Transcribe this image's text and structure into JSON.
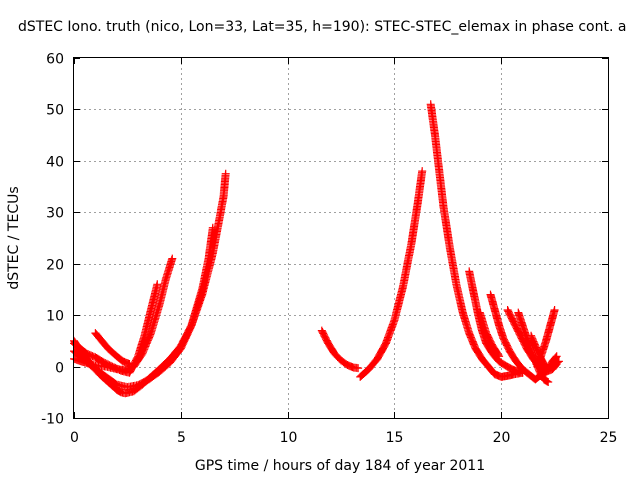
{
  "chart_data": {
    "type": "scatter",
    "title": "dSTEC Iono. truth (nico, Lon=33, Lat=35, h=190): STEC-STEC_elemax in phase cont. a",
    "xlabel": "GPS time / hours of day 184 of year 2011",
    "ylabel": "dSTEC  / TECUs",
    "xlim": [
      0,
      25
    ],
    "ylim": [
      -10,
      60
    ],
    "xticks": [
      0,
      5,
      10,
      15,
      20,
      25
    ],
    "yticks": [
      -10,
      0,
      10,
      20,
      30,
      40,
      50,
      60
    ],
    "grid": true,
    "marker": "plus",
    "color": "#ff0000",
    "series": [
      {
        "x": [
          0.0,
          0.4,
          0.8,
          1.2,
          1.6,
          2.0,
          2.2,
          2.4,
          2.8,
          3.2,
          3.6,
          4.0,
          4.5,
          5.0,
          5.5,
          6.0,
          6.5,
          7.0,
          7.1
        ],
        "y": [
          5.0,
          2.5,
          0.5,
          -1.5,
          -3.0,
          -4.5,
          -5.0,
          -5.2,
          -4.8,
          -3.5,
          -2.0,
          -0.5,
          1.5,
          4.0,
          8.0,
          14.0,
          22.0,
          33.0,
          37.5
        ]
      },
      {
        "x": [
          0.0,
          0.5,
          1.0,
          1.5,
          2.0,
          2.5,
          3.0,
          3.5,
          4.0,
          4.5,
          5.0,
          5.5,
          6.0,
          6.3,
          6.5
        ],
        "y": [
          3.0,
          1.2,
          -0.5,
          -2.0,
          -3.5,
          -4.0,
          -3.6,
          -2.5,
          -1.0,
          0.8,
          3.5,
          8.0,
          15.0,
          21.0,
          27.0
        ]
      },
      {
        "x": [
          0.0,
          0.5,
          1.0,
          1.5,
          2.0,
          2.4,
          2.8,
          3.2,
          3.6,
          4.0,
          4.3,
          4.6
        ],
        "y": [
          1.5,
          0.8,
          0.2,
          0.0,
          -0.5,
          -0.7,
          0.0,
          2.5,
          6.5,
          12.0,
          17.0,
          21.0
        ]
      },
      {
        "x": [
          0.0,
          0.3,
          0.6,
          1.0,
          1.4,
          1.8,
          2.2,
          2.6,
          3.0,
          3.3,
          3.6,
          3.9
        ],
        "y": [
          4.5,
          3.5,
          2.5,
          1.8,
          0.8,
          0.0,
          -0.8,
          -1.2,
          2.0,
          6.0,
          11.0,
          16.0
        ]
      },
      {
        "x": [
          1.0,
          1.3,
          1.6,
          2.0,
          2.3,
          2.6
        ],
        "y": [
          6.5,
          5.0,
          3.5,
          2.0,
          1.0,
          0.5
        ]
      },
      {
        "x": [
          11.6,
          11.9,
          12.2,
          12.5,
          12.8,
          13.1,
          13.3
        ],
        "y": [
          7.0,
          4.5,
          2.5,
          1.2,
          0.3,
          -0.2,
          -0.3
        ]
      },
      {
        "x": [
          13.4,
          13.8,
          14.2,
          14.6,
          15.0,
          15.4,
          15.8,
          16.1,
          16.3
        ],
        "y": [
          -2.0,
          -0.5,
          1.5,
          4.5,
          9.0,
          15.5,
          24.0,
          32.0,
          38.0
        ]
      },
      {
        "x": [
          16.7,
          16.9,
          17.1,
          17.3,
          17.6,
          17.9,
          18.2,
          18.5,
          18.8,
          19.1,
          19.4,
          19.7,
          20.0,
          20.3,
          20.6,
          21.0
        ],
        "y": [
          51.0,
          45.0,
          38.0,
          31.0,
          23.0,
          16.0,
          10.5,
          6.5,
          3.5,
          1.5,
          0.0,
          -1.5,
          -2.0,
          -1.8,
          -1.5,
          -1.2
        ]
      },
      {
        "x": [
          18.5,
          18.7,
          18.9,
          19.1,
          19.3,
          19.6,
          19.9,
          20.2,
          20.5,
          20.8,
          21.0
        ],
        "y": [
          18.5,
          14.5,
          10.5,
          7.0,
          4.5,
          2.5,
          1.0,
          0.2,
          -0.5,
          -1.0,
          -1.2
        ]
      },
      {
        "x": [
          19.5,
          19.7,
          19.9,
          20.1,
          20.4,
          20.7,
          21.0,
          21.3,
          21.6,
          21.9,
          22.2,
          22.5,
          22.7
        ],
        "y": [
          14.0,
          11.0,
          8.0,
          5.5,
          3.0,
          1.0,
          -0.5,
          -1.5,
          -2.5,
          -1.5,
          -0.5,
          0.5,
          1.0
        ]
      },
      {
        "x": [
          20.3,
          20.6,
          20.9,
          21.2,
          21.5,
          21.8,
          22.1,
          22.4,
          22.6
        ],
        "y": [
          11.0,
          8.5,
          6.0,
          3.5,
          1.5,
          0.0,
          -1.0,
          -0.5,
          0.5
        ]
      },
      {
        "x": [
          20.8,
          21.0,
          21.2,
          21.4,
          21.6,
          21.8,
          22.0,
          22.2
        ],
        "y": [
          10.5,
          8.0,
          5.5,
          3.0,
          1.0,
          -1.0,
          -2.5,
          -3.0
        ]
      },
      {
        "x": [
          21.7,
          21.9,
          22.1,
          22.3,
          22.5
        ],
        "y": [
          0.0,
          2.5,
          5.0,
          8.0,
          11.0
        ]
      },
      {
        "x": [
          21.4,
          21.6,
          21.8,
          22.0,
          22.2,
          22.4,
          22.6
        ],
        "y": [
          6.0,
          4.0,
          2.0,
          0.5,
          -0.5,
          1.0,
          2.0
        ]
      },
      {
        "x": [
          19.0,
          19.3,
          19.6,
          19.9
        ],
        "y": [
          10.5,
          6.5,
          4.0,
          2.0
        ]
      }
    ]
  }
}
